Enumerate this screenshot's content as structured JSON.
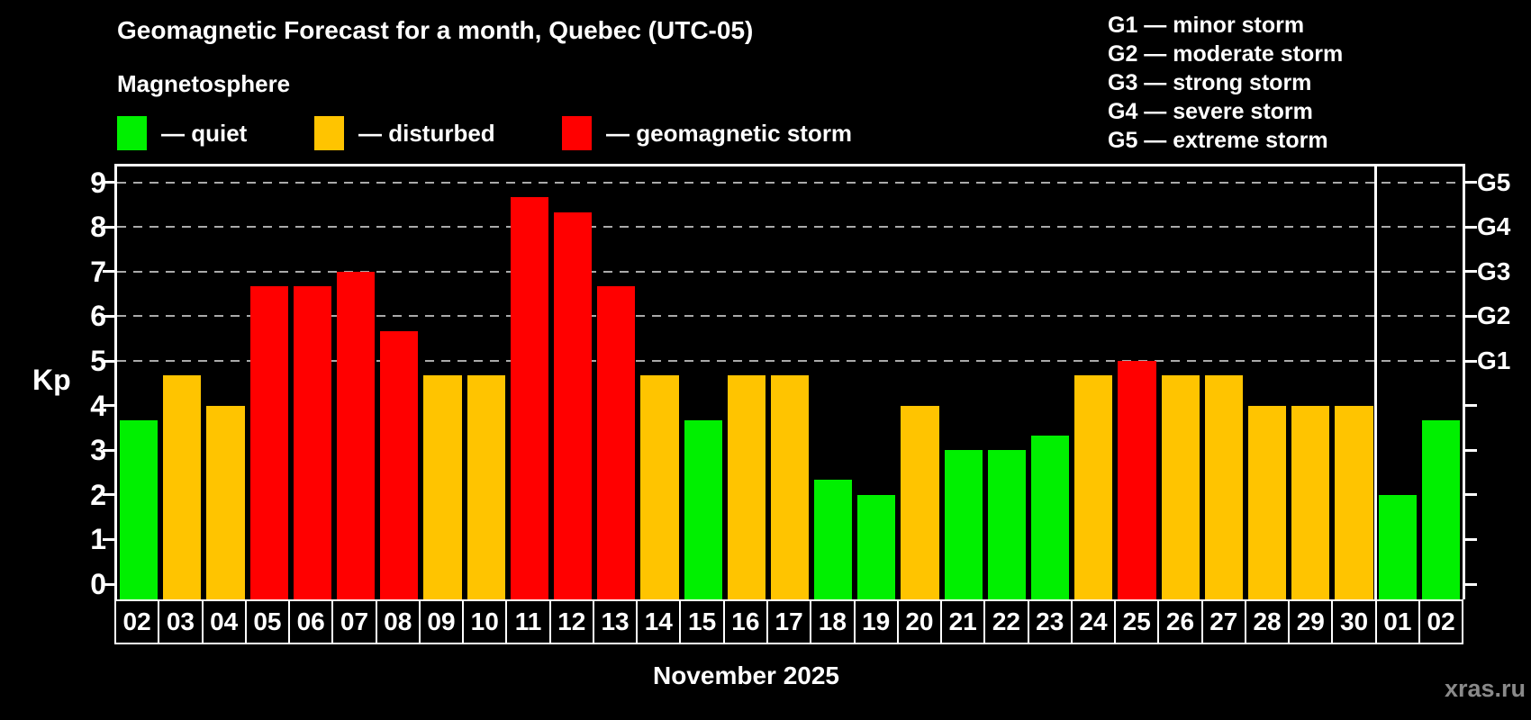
{
  "title": "Geomagnetic Forecast for a month, Quebec (UTC-05)",
  "subtitle": "Magnetosphere",
  "legend": {
    "quiet_label": "— quiet",
    "disturbed_label": "— disturbed",
    "storm_label": "— geomagnetic storm"
  },
  "g_legend": [
    "G1 — minor storm",
    "G2 — moderate storm",
    "G3 — strong storm",
    "G4 — severe storm",
    "G5 — extreme storm"
  ],
  "colors": {
    "quiet": "#00f000",
    "disturbed": "#ffc400",
    "storm": "#ff0000",
    "axis": "#ffffff",
    "grid": "#aaaaaa",
    "background": "#000000",
    "watermark": "#8a8a8a"
  },
  "y_axis_label": "Kp",
  "month_label": "November 2025",
  "watermark": "xras.ru",
  "chart_data": {
    "type": "bar",
    "title": "Geomagnetic Forecast for a month, Quebec (UTC-05)",
    "subtitle": "Magnetosphere",
    "xlabel": "November 2025",
    "ylabel": "Kp",
    "ylim": [
      0,
      9
    ],
    "y_ticks": [
      0,
      1,
      2,
      3,
      4,
      5,
      6,
      7,
      8,
      9
    ],
    "gridlines_at": [
      5,
      6,
      7,
      8,
      9
    ],
    "grid": "dashed, only at storm levels 5-9",
    "right_axis_labels": [
      {
        "label": "G1",
        "kp": 5
      },
      {
        "label": "G2",
        "kp": 6
      },
      {
        "label": "G3",
        "kp": 7
      },
      {
        "label": "G4",
        "kp": 8
      },
      {
        "label": "G5",
        "kp": 9
      }
    ],
    "legend_position": "top-left above plot; G-scale legend top-right",
    "categories": [
      "02",
      "03",
      "04",
      "05",
      "06",
      "07",
      "08",
      "09",
      "10",
      "11",
      "12",
      "13",
      "14",
      "15",
      "16",
      "17",
      "18",
      "19",
      "20",
      "21",
      "22",
      "23",
      "24",
      "25",
      "26",
      "27",
      "28",
      "29",
      "30",
      "01",
      "02"
    ],
    "values": [
      3.67,
      4.67,
      4.0,
      6.67,
      6.67,
      7.0,
      5.67,
      4.67,
      4.67,
      8.67,
      8.33,
      6.67,
      4.67,
      3.67,
      4.67,
      4.67,
      2.33,
      2.0,
      4.0,
      3.0,
      3.0,
      3.33,
      4.67,
      5.0,
      4.67,
      4.67,
      4.0,
      4.0,
      4.0,
      2.0,
      3.67
    ],
    "levels": [
      "quiet",
      "disturbed",
      "disturbed",
      "storm",
      "storm",
      "storm",
      "storm",
      "disturbed",
      "disturbed",
      "storm",
      "storm",
      "storm",
      "disturbed",
      "quiet",
      "disturbed",
      "disturbed",
      "quiet",
      "quiet",
      "disturbed",
      "quiet",
      "quiet",
      "quiet",
      "disturbed",
      "storm",
      "disturbed",
      "disturbed",
      "disturbed",
      "disturbed",
      "disturbed",
      "quiet",
      "quiet"
    ],
    "month_boundary_after_index": 28
  }
}
